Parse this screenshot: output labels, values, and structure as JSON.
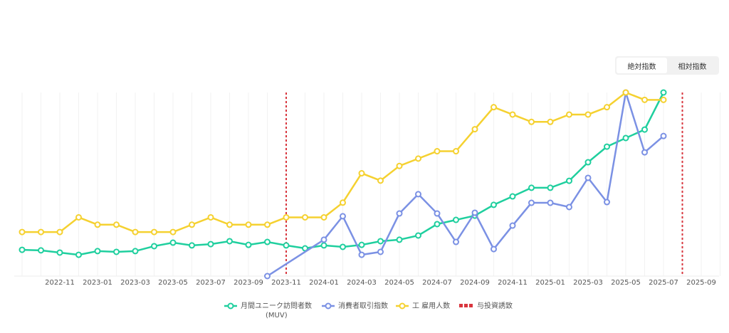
{
  "buttons": [
    "絶対指数",
    "相対指数"
  ],
  "chart_data": {
    "type": "line",
    "categories": [
      null,
      null,
      "2022-11",
      null,
      "2023-01",
      null,
      "2023-03",
      null,
      "2023-05",
      null,
      "2023-07",
      null,
      "2023-09",
      null,
      "2023-11",
      null,
      "2024-01",
      null,
      "2024-03",
      null,
      "2024-05",
      null,
      "2024-07",
      null,
      "2024-09",
      null,
      "2024-11",
      null,
      "2025-01",
      null,
      "2025-03",
      null,
      "2025-05",
      null,
      "2025-07",
      null,
      "2025-09",
      null
    ],
    "ylim": [
      0,
      100
    ],
    "span_gaps": true,
    "grid": true,
    "series": [
      {
        "name": "月間ユニーク訪問者数\n(MUV)",
        "color": "#1fcf9e",
        "values": [
          14.3,
          14,
          12.8,
          11.6,
          13.6,
          13.2,
          13.6,
          16.3,
          18.2,
          16.7,
          17.4,
          19,
          17,
          18.6,
          16.7,
          15.1,
          16.7,
          15.9,
          17,
          19,
          19.8,
          22.1,
          28.3,
          30.6,
          32.9,
          38.8,
          43.4,
          48.1,
          48.1,
          51.9,
          62,
          70.5,
          75.2,
          79.8,
          100,
          null,
          null,
          null
        ]
      },
      {
        "name": "消費者取引指数",
        "color": "#7b91e4",
        "values": [
          null,
          null,
          null,
          null,
          null,
          null,
          null,
          null,
          null,
          null,
          null,
          null,
          null,
          0,
          null,
          null,
          19.8,
          32.6,
          11.6,
          13.2,
          34.1,
          44.6,
          34.1,
          18.6,
          34.5,
          14.7,
          27.5,
          39.9,
          39.9,
          37.6,
          53.5,
          40.3,
          100,
          67.4,
          76.3,
          null,
          null,
          null
        ]
      },
      {
        "name": "工 雇用人数",
        "color": "#f5d130",
        "values": [
          24,
          24,
          24,
          32,
          28,
          28,
          24,
          24,
          24,
          28,
          32,
          28,
          28,
          28,
          32,
          32,
          32,
          40,
          56,
          52,
          60,
          64,
          68,
          68,
          80,
          92,
          88,
          84,
          84,
          88,
          88,
          92,
          100,
          96,
          96,
          null,
          null,
          null
        ]
      }
    ],
    "events": {
      "name": "与投資誘致",
      "color": "#d9363e",
      "category_indices": [
        14,
        35
      ]
    }
  }
}
